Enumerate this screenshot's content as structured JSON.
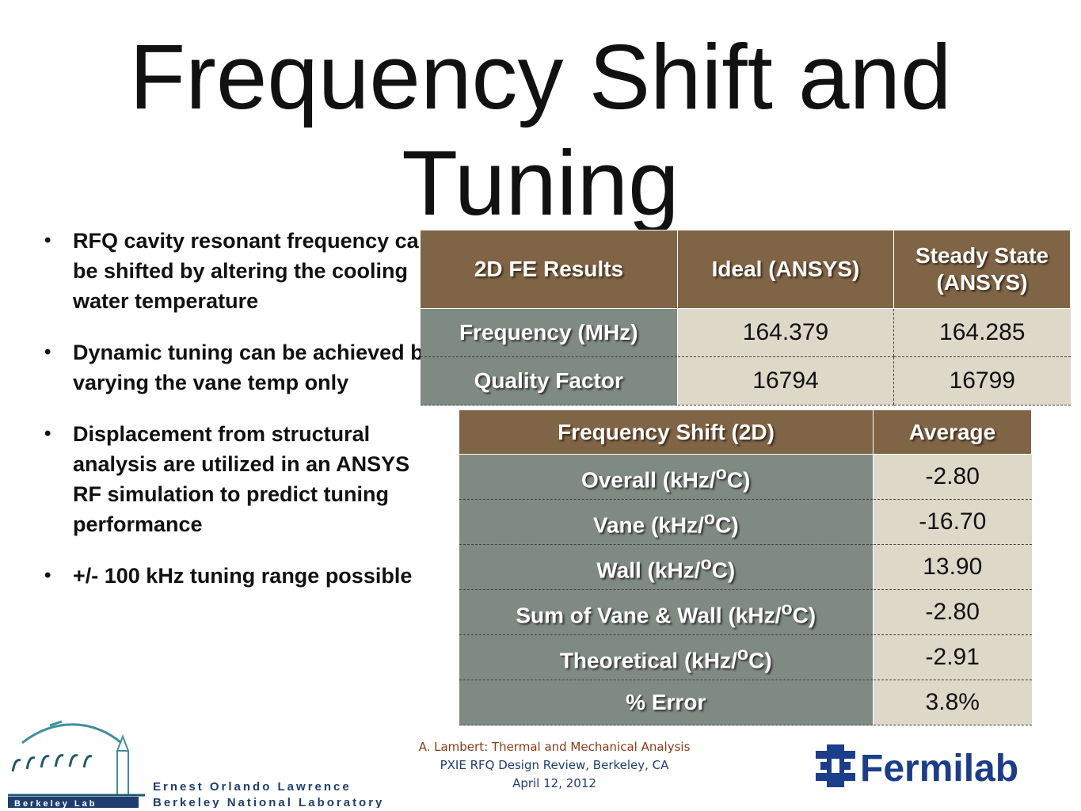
{
  "title": "Frequency Shift and Tuning",
  "bullets": [
    "RFQ cavity resonant frequency can be shifted by altering the cooling water temperature",
    "Dynamic tuning can be achieved by varying the vane temp only",
    "Displacement from structural analysis are utilized in an ANSYS RF simulation to predict tuning performance",
    "+/- 100 kHz tuning range possible"
  ],
  "table1": {
    "headers": [
      "2D FE Results",
      "Ideal (ANSYS)",
      "Steady State (ANSYS)"
    ],
    "rows": [
      {
        "label": "Frequency (MHz)",
        "ideal": "164.379",
        "steady": "164.285"
      },
      {
        "label": "Quality Factor",
        "ideal": "16794",
        "steady": "16799"
      }
    ]
  },
  "table2": {
    "headers": [
      "Frequency Shift (2D)",
      "Average"
    ],
    "rows": [
      {
        "label": "Overall (kHz/",
        "unit": "C)",
        "value": "-2.80"
      },
      {
        "label": "Vane (kHz/",
        "unit": "C)",
        "value": "-16.70"
      },
      {
        "label": "Wall (kHz/",
        "unit": "C)",
        "value": "13.90"
      },
      {
        "label": "Sum of Vane & Wall (kHz/",
        "unit": "C)",
        "value": "-2.80"
      },
      {
        "label": "Theoretical (kHz/",
        "unit": "C)",
        "value": "-2.91"
      },
      {
        "label": "% Error",
        "unit": "",
        "value": "3.8%"
      }
    ],
    "degree_mark": "o"
  },
  "footer": {
    "line1": "A. Lambert: Thermal and Mechanical Analysis",
    "line2": "PXIE RFQ Design Review, Berkeley, CA",
    "line3": "April 12, 2012"
  },
  "logos": {
    "berkeley_line1": "Ernest Orlando Lawrence",
    "berkeley_line2": "Berkeley National Laboratory",
    "berkeley_badge": "Berkeley Lab",
    "fermilab": "Fermilab"
  },
  "colors": {
    "header_brown": "#7f6445",
    "label_gray": "#7f8a83",
    "value_beige": "#ddd8c8",
    "fermilab_blue": "#1c3d8c",
    "footer_orange": "#8b3a12",
    "footer_blue": "#1f3c7a"
  }
}
